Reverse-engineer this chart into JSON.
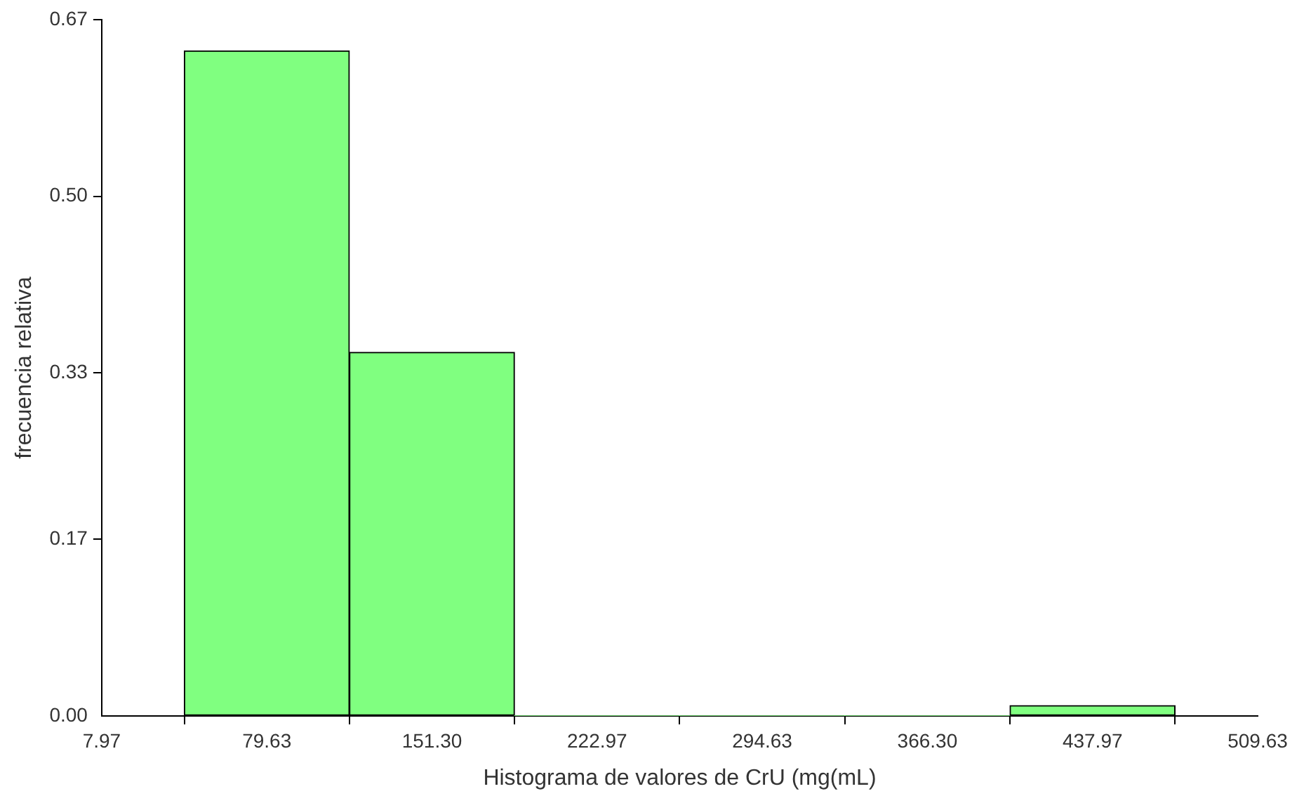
{
  "chart_data": {
    "type": "histogram",
    "xlabel": "Histograma de valores de CrU (mg(mL)",
    "ylabel": "frecuencia relativa",
    "bins": [
      43.8,
      115.47,
      187.13,
      258.8,
      330.47,
      402.13,
      473.8
    ],
    "values": [
      0.64,
      0.35,
      0,
      0,
      0,
      0.01
    ],
    "color": "#80ff80",
    "xlim": [
      7.97,
      509.63
    ],
    "xticks": [
      7.97,
      {
        "value": 79.63,
        "label": "79.63"
      },
      {
        "value": 151.3,
        "label": "151.30"
      },
      {
        "value": 222.97,
        "label": "222.97"
      },
      {
        "value": 294.63,
        "label": "294.63"
      },
      {
        "value": 366.3,
        "label": "366.30"
      },
      {
        "value": 437.97,
        "label": "437.97"
      },
      {
        "value": 509.63,
        "label": "509.63"
      }
    ],
    "ylim": [
      0,
      0.67
    ],
    "yticks": [
      {
        "value": 0,
        "label": "0.00"
      },
      0.17,
      0.33,
      {
        "value": 0.5,
        "label": "0.50"
      },
      0.67
    ],
    "grid": false,
    "legend": false
  }
}
